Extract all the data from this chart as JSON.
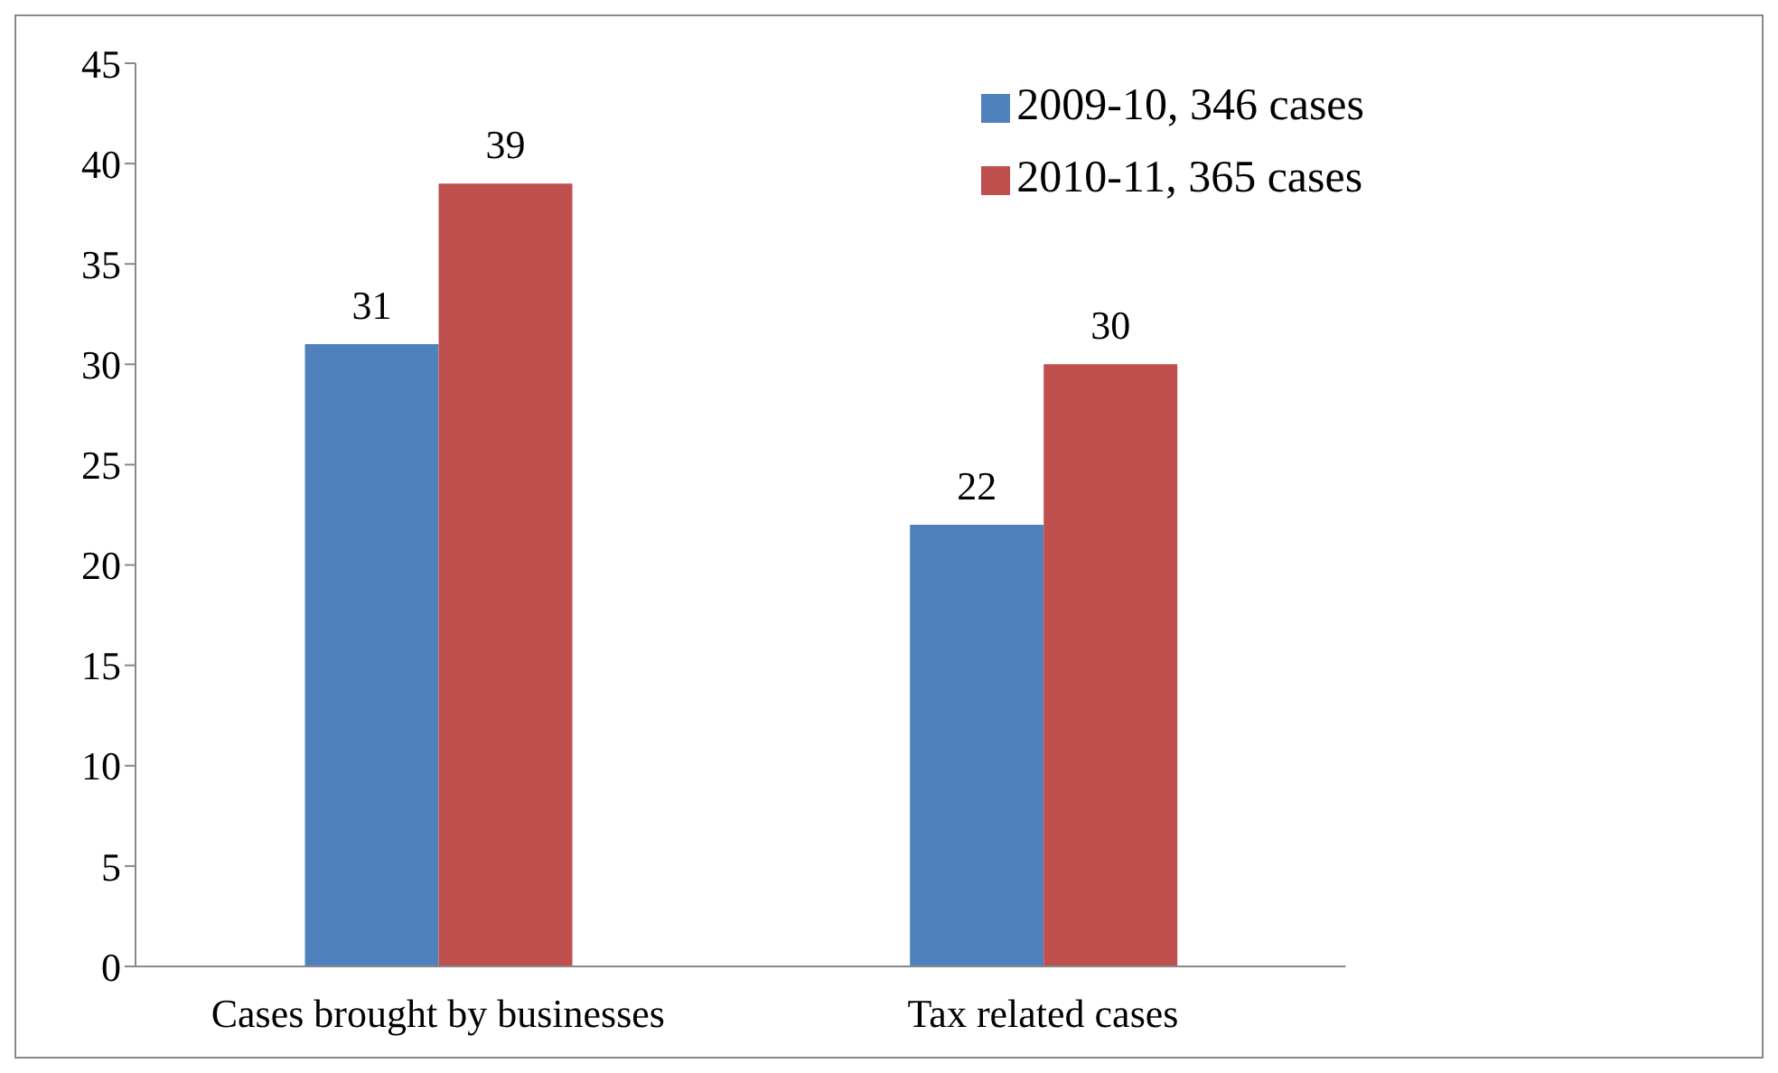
{
  "chart_data": {
    "type": "bar",
    "categories": [
      "Cases brought by businesses",
      "Tax related cases"
    ],
    "series": [
      {
        "name": "2009-10, 346 cases",
        "color": "#4f81bd",
        "values": [
          31,
          22
        ]
      },
      {
        "name": "2010-11, 365 cases",
        "color": "#c0504d",
        "values": [
          39,
          30
        ]
      }
    ],
    "ylim": [
      0,
      45
    ],
    "yticks": [
      0,
      5,
      10,
      15,
      20,
      25,
      30,
      35,
      40,
      45
    ],
    "grid": false,
    "legend": "top right",
    "data_labels": true
  }
}
